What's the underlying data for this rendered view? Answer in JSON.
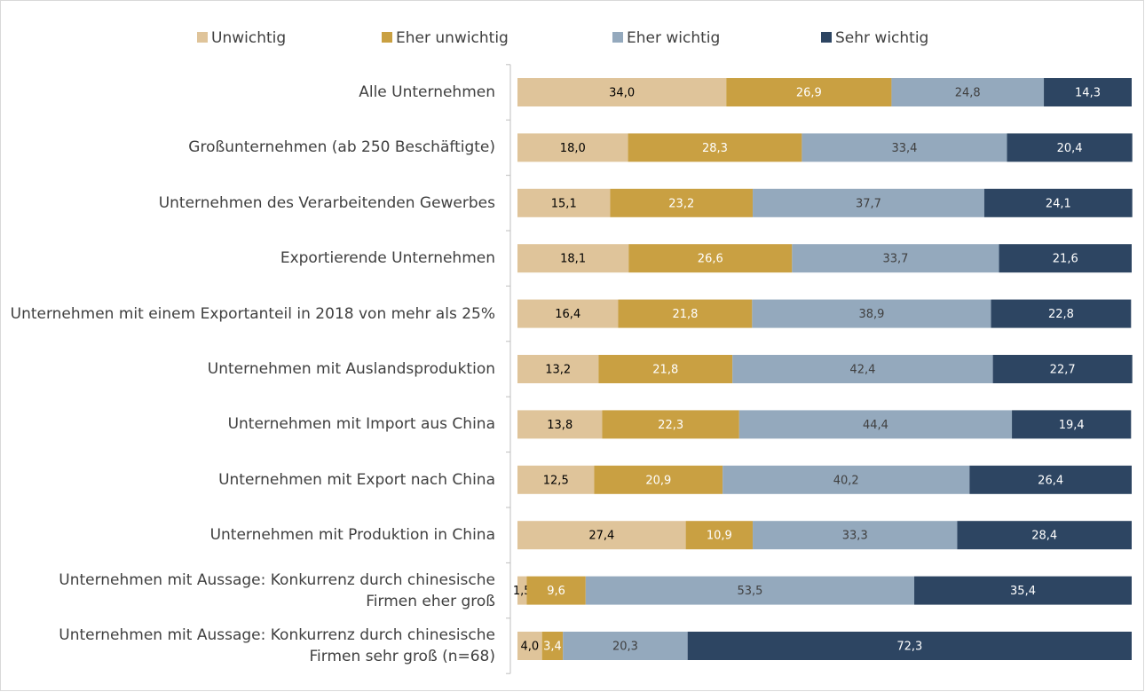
{
  "chart_data": {
    "type": "stacked_bar_horizontal",
    "categories": [
      "Alle Unternehmen",
      "Großunternehmen (ab 250 Beschäftigte)",
      "Unternehmen des Verarbeitenden Gewerbes",
      "Exportierende Unternehmen",
      "Unternehmen mit einem Exportanteil in 2018 von mehr als 25%",
      "Unternehmen mit Auslandsproduktion",
      "Unternehmen mit Import aus China",
      "Unternehmen mit Export nach China",
      "Unternehmen mit Produktion in China",
      "Unternehmen mit Aussage: Konkurrenz durch chinesische Firmen eher groß",
      "Unternehmen mit Aussage: Konkurrenz durch chinesische Firmen sehr groß (n=68)"
    ],
    "xlim": [
      0,
      100
    ],
    "legend": "top",
    "series": [
      {
        "name": "Unwichtig",
        "color": "#dfc49a",
        "label_color": "#000000",
        "values": [
          34.0,
          18.0,
          15.1,
          18.1,
          16.4,
          13.2,
          13.8,
          12.5,
          27.4,
          1.5,
          4.0
        ],
        "value_labels": [
          "34,0",
          "18,0",
          "15,1",
          "18,1",
          "16,4",
          "13,2",
          "13,8",
          "12,5",
          "27,4",
          "1,5",
          "4,0"
        ]
      },
      {
        "name": "Eher unwichtig",
        "color": "#c9a042",
        "label_color": "#ffffff",
        "values": [
          26.9,
          28.3,
          23.2,
          26.6,
          21.8,
          21.8,
          22.3,
          20.9,
          10.9,
          9.6,
          3.4
        ],
        "value_labels": [
          "26,9",
          "28,3",
          "23,2",
          "26,6",
          "21,8",
          "21,8",
          "22,3",
          "20,9",
          "10,9",
          "9,6",
          "3,4"
        ]
      },
      {
        "name": "Eher wichtig",
        "color": "#94a9bd",
        "label_color": "#404040",
        "values": [
          24.8,
          33.4,
          37.7,
          33.7,
          38.9,
          42.4,
          44.4,
          40.2,
          33.3,
          53.5,
          20.3
        ],
        "value_labels": [
          "24,8",
          "33,4",
          "37,7",
          "33,7",
          "38,9",
          "42,4",
          "44,4",
          "40,2",
          "33,3",
          "53,5",
          "20,3"
        ]
      },
      {
        "name": "Sehr wichtig",
        "color": "#2d4562",
        "label_color": "#ffffff",
        "values": [
          14.3,
          20.4,
          24.1,
          21.6,
          22.8,
          22.7,
          19.4,
          26.4,
          28.4,
          35.4,
          72.3
        ],
        "value_labels": [
          "14,3",
          "20,4",
          "24,1",
          "21,6",
          "22,8",
          "22,7",
          "19,4",
          "26,4",
          "28,4",
          "35,4",
          "72,3"
        ]
      }
    ]
  }
}
